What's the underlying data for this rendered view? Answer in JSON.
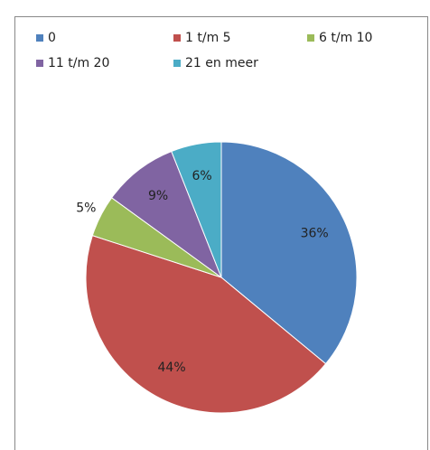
{
  "chart_data": {
    "type": "pie",
    "categories": [
      "0",
      "1 t/m 5",
      "6 t/m 10",
      "11 t/m 20",
      "21 en meer"
    ],
    "values": [
      36,
      44,
      5,
      9,
      6
    ],
    "value_labels": [
      "36%",
      "44%",
      "5%",
      "9%",
      "6%"
    ],
    "colors": [
      "#4f81bd",
      "#c0504d",
      "#9bbb59",
      "#8064a2",
      "#4bacc6"
    ],
    "legend": "top"
  }
}
